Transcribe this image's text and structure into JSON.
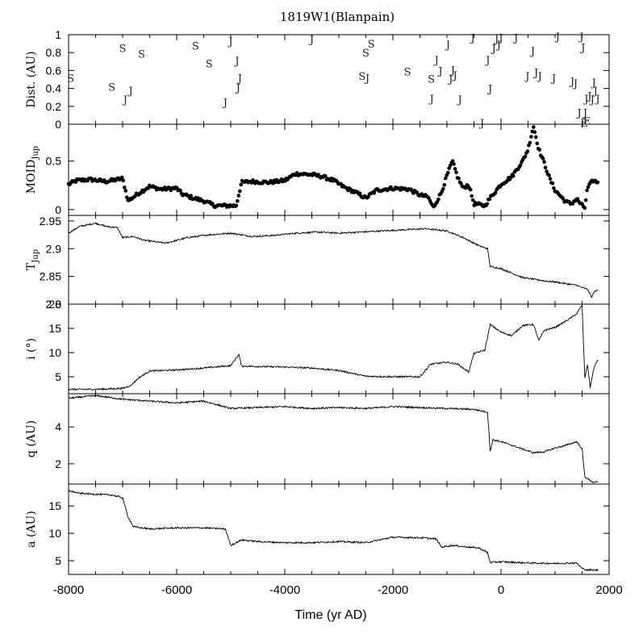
{
  "chart_data": {
    "type": "line",
    "title": "1819W1(Blanpain)",
    "xlabel": "Time (yr AD)",
    "xlim": [
      -8000,
      2000
    ],
    "xticks": [
      -8000,
      -6000,
      -4000,
      -2000,
      0,
      2000
    ],
    "xtick_labels": [
      "-8000",
      "-6000",
      "-4000",
      "-2000",
      "0",
      "2000"
    ],
    "panels": [
      {
        "id": "dist",
        "ylabel": "Dist. (AU)",
        "ylim": [
          0,
          1
        ],
        "yticks": [
          0,
          0.2,
          0.4,
          0.6,
          0.8,
          1
        ],
        "ytick_labels": [
          "0",
          "0.2",
          "0.4",
          "0.6",
          "0.8",
          "1"
        ],
        "kind": "encounters",
        "series": [
          {
            "name": "Saturn encounters",
            "label": "S",
            "points": [
              [
                -7960,
                0.52
              ],
              [
                -7200,
                0.42
              ],
              [
                -7000,
                0.85
              ],
              [
                -6650,
                0.79
              ],
              [
                -5650,
                0.88
              ],
              [
                -5400,
                0.68
              ],
              [
                -2570,
                0.54
              ],
              [
                -2500,
                0.8
              ],
              [
                -2400,
                0.9
              ],
              [
                -1730,
                0.59
              ],
              [
                -1290,
                0.51
              ]
            ]
          },
          {
            "name": "Jupiter encounters",
            "label": "J",
            "points": [
              [
                -6950,
                0.28
              ],
              [
                -6850,
                0.38
              ],
              [
                -5100,
                0.25
              ],
              [
                -5000,
                0.93
              ],
              [
                -4880,
                0.71
              ],
              [
                -4830,
                0.52
              ],
              [
                -4860,
                0.41
              ],
              [
                -3500,
                0.95
              ],
              [
                -2470,
                0.52
              ],
              [
                -1280,
                0.29
              ],
              [
                -1190,
                0.72
              ],
              [
                -1120,
                0.6
              ],
              [
                -980,
                0.89
              ],
              [
                -930,
                0.51
              ],
              [
                -890,
                0.61
              ],
              [
                -850,
                0.55
              ],
              [
                -760,
                0.28
              ],
              [
                -520,
                0.97
              ],
              [
                -350,
                0.02
              ],
              [
                -240,
                0.72
              ],
              [
                -200,
                0.4
              ],
              [
                -130,
                0.85
              ],
              [
                -80,
                0.96
              ],
              [
                -40,
                0.89
              ],
              [
                0,
                0.97
              ],
              [
                280,
                0.97
              ],
              [
                490,
                0.54
              ],
              [
                590,
                0.82
              ],
              [
                650,
                0.58
              ],
              [
                720,
                0.54
              ],
              [
                980,
                0.52
              ],
              [
                1050,
                0.98
              ],
              [
                1320,
                0.48
              ],
              [
                1380,
                0.46
              ],
              [
                1450,
                0.13
              ],
              [
                1490,
                0.98
              ],
              [
                1520,
                0.86
              ],
              [
                1560,
                0.13
              ],
              [
                1580,
                0.29
              ],
              [
                1640,
                0.32
              ],
              [
                1690,
                0.28
              ],
              [
                1720,
                0.47
              ],
              [
                1750,
                0.38
              ],
              [
                1790,
                0.29
              ]
            ]
          },
          {
            "name": "Earth encounters",
            "label": "E",
            "points": [
              [
                1540,
                0.02
              ],
              [
                1590,
                0.04
              ]
            ]
          }
        ]
      },
      {
        "id": "moid",
        "ylabel": "MOID",
        "ylabel_sub": "Jup",
        "ylim": [
          -0.06,
          0.88
        ],
        "yticks": [
          0,
          0.5
        ],
        "ytick_labels": [
          "0",
          "0.5"
        ],
        "kind": "scatter",
        "keypoints": [
          [
            -8000,
            0.26
          ],
          [
            -7850,
            0.3
          ],
          [
            -7600,
            0.31
          ],
          [
            -7300,
            0.29
          ],
          [
            -7000,
            0.32
          ],
          [
            -6900,
            0.09
          ],
          [
            -6700,
            0.17
          ],
          [
            -6500,
            0.24
          ],
          [
            -6300,
            0.21
          ],
          [
            -6000,
            0.22
          ],
          [
            -5900,
            0.16
          ],
          [
            -5700,
            0.12
          ],
          [
            -5500,
            0.09
          ],
          [
            -5300,
            0.04
          ],
          [
            -5100,
            0.04
          ],
          [
            -4900,
            0.04
          ],
          [
            -4800,
            0.28
          ],
          [
            -4600,
            0.29
          ],
          [
            -4300,
            0.28
          ],
          [
            -4000,
            0.3
          ],
          [
            -3800,
            0.37
          ],
          [
            -3500,
            0.36
          ],
          [
            -3300,
            0.34
          ],
          [
            -3100,
            0.3
          ],
          [
            -2900,
            0.23
          ],
          [
            -2700,
            0.18
          ],
          [
            -2500,
            0.12
          ],
          [
            -2300,
            0.2
          ],
          [
            -2000,
            0.22
          ],
          [
            -1700,
            0.21
          ],
          [
            -1500,
            0.15
          ],
          [
            -1350,
            0.13
          ],
          [
            -1250,
            0.02
          ],
          [
            -1100,
            0.18
          ],
          [
            -1000,
            0.35
          ],
          [
            -900,
            0.5
          ],
          [
            -800,
            0.33
          ],
          [
            -700,
            0.22
          ],
          [
            -600,
            0.26
          ],
          [
            -500,
            0.06
          ],
          [
            -300,
            0.04
          ],
          [
            -200,
            0.12
          ],
          [
            0,
            0.26
          ],
          [
            200,
            0.34
          ],
          [
            400,
            0.5
          ],
          [
            500,
            0.62
          ],
          [
            600,
            0.86
          ],
          [
            700,
            0.62
          ],
          [
            800,
            0.48
          ],
          [
            900,
            0.32
          ],
          [
            1000,
            0.2
          ],
          [
            1100,
            0.14
          ],
          [
            1200,
            0.08
          ],
          [
            1300,
            0.06
          ],
          [
            1400,
            0.11
          ],
          [
            1500,
            0.04
          ],
          [
            1550,
            0.02
          ],
          [
            1600,
            0.22
          ],
          [
            1700,
            0.3
          ],
          [
            1800,
            0.28
          ]
        ]
      },
      {
        "id": "tjup",
        "ylabel": "T",
        "ylabel_sub": "Jup",
        "ylim": [
          2.8,
          2.96
        ],
        "yticks": [
          2.8,
          2.85,
          2.9,
          2.95
        ],
        "ytick_labels": [
          "2.8",
          "2.85",
          "2.9",
          "2.95"
        ],
        "kind": "line",
        "keypoints": [
          [
            -8000,
            2.928
          ],
          [
            -7800,
            2.94
          ],
          [
            -7500,
            2.946
          ],
          [
            -7300,
            2.94
          ],
          [
            -7100,
            2.938
          ],
          [
            -7000,
            2.92
          ],
          [
            -6800,
            2.922
          ],
          [
            -6600,
            2.915
          ],
          [
            -6200,
            2.91
          ],
          [
            -5800,
            2.92
          ],
          [
            -5400,
            2.925
          ],
          [
            -5000,
            2.928
          ],
          [
            -4600,
            2.922
          ],
          [
            -4200,
            2.924
          ],
          [
            -3800,
            2.928
          ],
          [
            -3400,
            2.93
          ],
          [
            -3000,
            2.928
          ],
          [
            -2600,
            2.93
          ],
          [
            -2200,
            2.932
          ],
          [
            -1800,
            2.934
          ],
          [
            -1400,
            2.936
          ],
          [
            -1000,
            2.932
          ],
          [
            -700,
            2.92
          ],
          [
            -400,
            2.905
          ],
          [
            -250,
            2.9
          ],
          [
            -200,
            2.868
          ],
          [
            0,
            2.864
          ],
          [
            200,
            2.856
          ],
          [
            400,
            2.848
          ],
          [
            600,
            2.845
          ],
          [
            800,
            2.842
          ],
          [
            1000,
            2.84
          ],
          [
            1200,
            2.837
          ],
          [
            1400,
            2.834
          ],
          [
            1500,
            2.83
          ],
          [
            1600,
            2.827
          ],
          [
            1680,
            2.812
          ],
          [
            1720,
            2.822
          ],
          [
            1800,
            2.826
          ]
        ]
      },
      {
        "id": "incl",
        "ylabel": "i (°)",
        "ylim": [
          1.5,
          20
        ],
        "yticks": [
          5,
          10,
          15,
          20
        ],
        "ytick_labels": [
          "5",
          "10",
          "15",
          "20"
        ],
        "kind": "line",
        "keypoints": [
          [
            -8000,
            2.4
          ],
          [
            -7500,
            2.4
          ],
          [
            -7000,
            2.6
          ],
          [
            -6850,
            3.2
          ],
          [
            -6700,
            4.8
          ],
          [
            -6500,
            6.2
          ],
          [
            -6000,
            6.4
          ],
          [
            -5500,
            6.8
          ],
          [
            -5000,
            7.3
          ],
          [
            -4850,
            9.6
          ],
          [
            -4800,
            7.2
          ],
          [
            -4000,
            7.0
          ],
          [
            -3500,
            6.8
          ],
          [
            -3000,
            6.3
          ],
          [
            -2500,
            5.1
          ],
          [
            -2000,
            5.0
          ],
          [
            -1500,
            5.0
          ],
          [
            -1300,
            7.6
          ],
          [
            -1000,
            8.0
          ],
          [
            -800,
            7.6
          ],
          [
            -600,
            6.0
          ],
          [
            -500,
            9.8
          ],
          [
            -300,
            10.5
          ],
          [
            -200,
            15.8
          ],
          [
            0,
            14.2
          ],
          [
            200,
            13.5
          ],
          [
            400,
            15.6
          ],
          [
            600,
            15.8
          ],
          [
            700,
            12.5
          ],
          [
            800,
            14.6
          ],
          [
            1000,
            15.2
          ],
          [
            1200,
            16.5
          ],
          [
            1400,
            18.0
          ],
          [
            1500,
            19.8
          ],
          [
            1550,
            4.8
          ],
          [
            1600,
            7.5
          ],
          [
            1650,
            2.8
          ],
          [
            1700,
            5.8
          ],
          [
            1750,
            7.8
          ],
          [
            1800,
            8.5
          ]
        ]
      },
      {
        "id": "q",
        "ylabel": "q (AU)",
        "ylim": [
          0.9,
          5.8
        ],
        "yticks": [
          2,
          4
        ],
        "ytick_labels": [
          "2",
          "4"
        ],
        "kind": "line",
        "keypoints": [
          [
            -8000,
            5.55
          ],
          [
            -7500,
            5.7
          ],
          [
            -7000,
            5.5
          ],
          [
            -6500,
            5.4
          ],
          [
            -6000,
            5.3
          ],
          [
            -5500,
            5.4
          ],
          [
            -5000,
            5.0
          ],
          [
            -4500,
            5.05
          ],
          [
            -4000,
            5.1
          ],
          [
            -3500,
            5.0
          ],
          [
            -3000,
            5.05
          ],
          [
            -2500,
            5.0
          ],
          [
            -2000,
            5.1
          ],
          [
            -1500,
            5.05
          ],
          [
            -1000,
            5.0
          ],
          [
            -500,
            4.95
          ],
          [
            -250,
            4.8
          ],
          [
            -200,
            2.7
          ],
          [
            -150,
            3.3
          ],
          [
            0,
            3.2
          ],
          [
            200,
            3.0
          ],
          [
            400,
            2.8
          ],
          [
            600,
            2.6
          ],
          [
            800,
            2.65
          ],
          [
            1000,
            2.85
          ],
          [
            1200,
            3.0
          ],
          [
            1400,
            3.2
          ],
          [
            1500,
            2.8
          ],
          [
            1550,
            1.3
          ],
          [
            1600,
            1.2
          ],
          [
            1700,
            1.0
          ],
          [
            1800,
            1.0
          ]
        ]
      },
      {
        "id": "a",
        "ylabel": "a (AU)",
        "ylim": [
          2.5,
          19
        ],
        "yticks": [
          5,
          10,
          15
        ],
        "ytick_labels": [
          "5",
          "10",
          "15"
        ],
        "kind": "line",
        "keypoints": [
          [
            -8000,
            17.8
          ],
          [
            -7800,
            17.3
          ],
          [
            -7200,
            17.0
          ],
          [
            -7000,
            16.5
          ],
          [
            -6900,
            13.0
          ],
          [
            -6800,
            11.2
          ],
          [
            -6500,
            10.8
          ],
          [
            -6000,
            11.0
          ],
          [
            -5500,
            11.0
          ],
          [
            -5100,
            10.8
          ],
          [
            -5000,
            7.8
          ],
          [
            -4800,
            8.8
          ],
          [
            -4500,
            8.5
          ],
          [
            -4000,
            8.3
          ],
          [
            -3500,
            8.3
          ],
          [
            -3000,
            8.5
          ],
          [
            -2500,
            8.3
          ],
          [
            -2000,
            9.3
          ],
          [
            -1500,
            9.2
          ],
          [
            -1200,
            9.0
          ],
          [
            -1100,
            7.5
          ],
          [
            -900,
            7.8
          ],
          [
            -600,
            7.5
          ],
          [
            -400,
            7.3
          ],
          [
            -250,
            6.5
          ],
          [
            -200,
            4.7
          ],
          [
            0,
            4.8
          ],
          [
            500,
            4.6
          ],
          [
            1000,
            4.5
          ],
          [
            1400,
            4.6
          ],
          [
            1500,
            3.6
          ],
          [
            1600,
            3.3
          ],
          [
            1800,
            3.3
          ]
        ]
      }
    ]
  }
}
